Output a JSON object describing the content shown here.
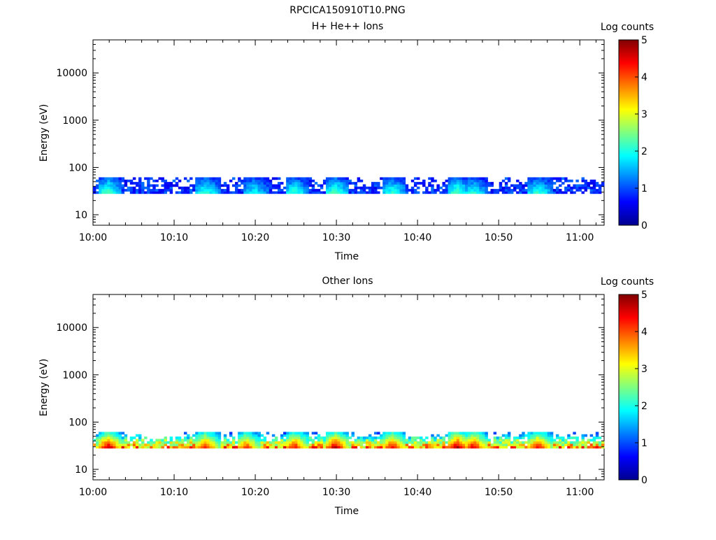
{
  "figure": {
    "title": "RPCICA150910T10.PNG"
  },
  "chart_data": [
    {
      "type": "heatmap",
      "title": "H+ He++ Ions",
      "xlabel": "Time",
      "ylabel": "Energy (eV)",
      "y_scale": "log",
      "ylim": [
        6,
        50000
      ],
      "y_ticks": [
        10,
        100,
        1000,
        10000
      ],
      "y_tick_labels": [
        "10",
        "100",
        "1000",
        "10000"
      ],
      "x_range": [
        "10:00",
        "11:03"
      ],
      "x_ticks": [
        "10:00",
        "10:10",
        "10:20",
        "10:30",
        "10:40",
        "10:50",
        "11:00"
      ],
      "band_energy_eV": [
        28,
        62
      ],
      "colorbar": {
        "label": "Log counts",
        "range": [
          0,
          5
        ],
        "ticks": [
          0,
          1,
          2,
          3,
          4,
          5
        ]
      },
      "bursts": [
        {
          "time": "10:01",
          "peak": 2.2
        },
        {
          "time": "10:13",
          "peak": 2.0
        },
        {
          "time": "10:19",
          "peak": 1.8
        },
        {
          "time": "10:24",
          "peak": 2.0
        },
        {
          "time": "10:29",
          "peak": 2.2
        },
        {
          "time": "10:36",
          "peak": 2.0
        },
        {
          "time": "10:44",
          "peak": 2.2
        },
        {
          "time": "10:46",
          "peak": 1.9
        },
        {
          "time": "10:54",
          "peak": 2.0
        }
      ],
      "background_level": 1.0
    },
    {
      "type": "heatmap",
      "title": "Other Ions",
      "xlabel": "Time",
      "ylabel": "Energy (eV)",
      "y_scale": "log",
      "ylim": [
        6,
        50000
      ],
      "y_ticks": [
        10,
        100,
        1000,
        10000
      ],
      "y_tick_labels": [
        "10",
        "100",
        "1000",
        "10000"
      ],
      "x_range": [
        "10:00",
        "11:03"
      ],
      "x_ticks": [
        "10:00",
        "10:10",
        "10:20",
        "10:30",
        "10:40",
        "10:50",
        "11:00"
      ],
      "band_energy_eV": [
        28,
        62
      ],
      "colorbar": {
        "label": "Log counts",
        "range": [
          0,
          5
        ],
        "ticks": [
          0,
          1,
          2,
          3,
          4,
          5
        ]
      },
      "bursts": [
        {
          "time": "10:01",
          "peak": 4.6
        },
        {
          "time": "10:13",
          "peak": 4.2
        },
        {
          "time": "10:18",
          "peak": 4.0
        },
        {
          "time": "10:24",
          "peak": 4.2
        },
        {
          "time": "10:29",
          "peak": 4.6
        },
        {
          "time": "10:36",
          "peak": 4.3
        },
        {
          "time": "10:44",
          "peak": 4.7
        },
        {
          "time": "10:46",
          "peak": 4.5
        },
        {
          "time": "10:54",
          "peak": 4.3
        }
      ],
      "background_level": 3.8
    }
  ]
}
